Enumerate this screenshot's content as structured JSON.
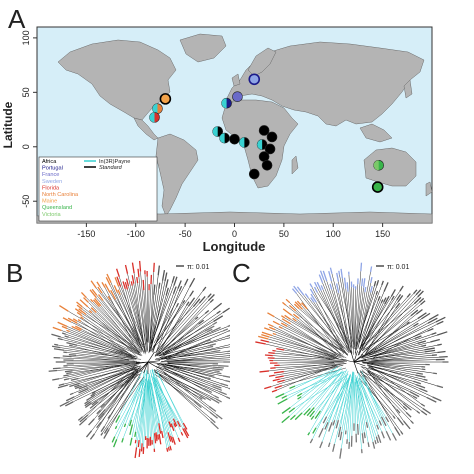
{
  "panels": {
    "a": "A",
    "b": "B",
    "c": "C"
  },
  "map": {
    "xlabel": "Longitude",
    "ylabel": "Latitude",
    "xticks": [
      "-150",
      "-100",
      "-50",
      "0",
      "50",
      "100",
      "150"
    ],
    "yticks": [
      "100",
      "50",
      "0",
      "-50"
    ],
    "ocean_color": "#d6eef8",
    "land_color": "#b4b4b4",
    "legend": {
      "regions": [
        {
          "label": "Africa",
          "color": "#000000"
        },
        {
          "label": "Portugal",
          "color": "#1b1b8a"
        },
        {
          "label": "France",
          "color": "#6a6ac8"
        },
        {
          "label": "Sweden",
          "color": "#8fa5e6"
        },
        {
          "label": "Florida",
          "color": "#d9302a"
        },
        {
          "label": "North Carolina",
          "color": "#e8813a"
        },
        {
          "label": "Maine",
          "color": "#f2a24a"
        },
        {
          "label": "Queensland",
          "color": "#38b44a"
        },
        {
          "label": "Victoria",
          "color": "#7bc86a"
        }
      ],
      "lines": [
        {
          "label": "In(3R)Payne",
          "color": "#39d1d1"
        },
        {
          "label": "Standard",
          "color": "#000000"
        }
      ]
    },
    "sites": [
      {
        "lon": 20,
        "lat": 62,
        "color": "#8fa5e6",
        "ring": "#1b1b8a",
        "split": ""
      },
      {
        "lon": -70,
        "lat": 44,
        "color": "#f2a24a",
        "ring": "#000000",
        "split": ""
      },
      {
        "lon": -78,
        "lat": 35,
        "color": "#e8813a",
        "ring": "",
        "split": "#39d1d1"
      },
      {
        "lon": -81,
        "lat": 27,
        "color": "#d9302a",
        "ring": "",
        "split": "#39d1d1"
      },
      {
        "lon": -8,
        "lat": 40,
        "color": "#1b1b8a",
        "ring": "",
        "split": "#39d1d1"
      },
      {
        "lon": 3,
        "lat": 46,
        "color": "#6a6ac8",
        "ring": "",
        "split": ""
      },
      {
        "lon": -17,
        "lat": 14,
        "color": "#000000",
        "ring": "",
        "split": "#39d1d1"
      },
      {
        "lon": -10,
        "lat": 8,
        "color": "#000000",
        "ring": "",
        "split": "#39d1d1"
      },
      {
        "lon": 0,
        "lat": 7,
        "color": "#000000",
        "ring": "",
        "split": ""
      },
      {
        "lon": 10,
        "lat": 4,
        "color": "#000000",
        "ring": "",
        "split": "#39d1d1"
      },
      {
        "lon": 30,
        "lat": 15,
        "color": "#000000",
        "ring": "",
        "split": ""
      },
      {
        "lon": 38,
        "lat": 9,
        "color": "#000000",
        "ring": "",
        "split": ""
      },
      {
        "lon": 28,
        "lat": 2,
        "color": "#000000",
        "ring": "",
        "split": "#39d1d1"
      },
      {
        "lon": 36,
        "lat": -2,
        "color": "#000000",
        "ring": "",
        "split": ""
      },
      {
        "lon": 30,
        "lat": -9,
        "color": "#000000",
        "ring": "",
        "split": ""
      },
      {
        "lon": 33,
        "lat": -17,
        "color": "#000000",
        "ring": "",
        "split": ""
      },
      {
        "lon": 20,
        "lat": -25,
        "color": "#000000",
        "ring": "",
        "split": ""
      },
      {
        "lon": 146,
        "lat": -17,
        "color": "#38b44a",
        "ring": "",
        "split": "#7bc86a"
      },
      {
        "lon": 145,
        "lat": -37,
        "color": "#38b44a",
        "ring": "#000000",
        "split": ""
      }
    ]
  },
  "tree_b": {
    "scale_label": "π: 0.01"
  },
  "tree_c": {
    "scale_label": "π: 0.01"
  }
}
